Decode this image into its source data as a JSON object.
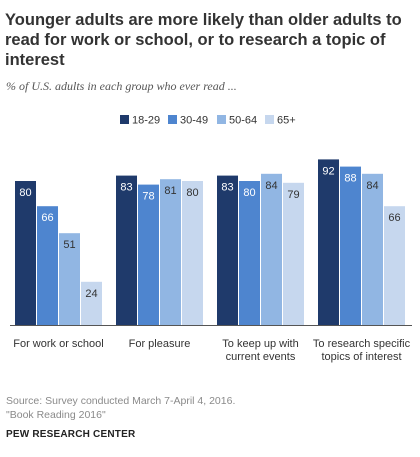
{
  "title": "Younger adults are more likely than older adults to read for work or school, or to research a topic of interest",
  "subtitle": "% of U.S. adults in each group who ever read ...",
  "source_line1": "Source: Survey conducted March 7-April 4, 2016.",
  "source_line2": "\"Book Reading 2016\"",
  "brand": "PEW RESEARCH CENTER",
  "colors": {
    "18-29": "#1f3a6b",
    "30-49": "#4e85cf",
    "50-64": "#91b6e3",
    "65+": "#c6d7ee"
  },
  "chart_data": {
    "type": "bar",
    "categories": [
      "For work or school",
      "For pleasure",
      "To keep up with current events",
      "To research specific topics of interest"
    ],
    "category_lines": [
      [
        "For work or school"
      ],
      [
        "For pleasure"
      ],
      [
        "To keep up with",
        "current events"
      ],
      [
        "To research specific",
        "topics of interest"
      ]
    ],
    "series": [
      {
        "name": "18-29",
        "values": [
          80,
          83,
          83,
          92
        ]
      },
      {
        "name": "30-49",
        "values": [
          66,
          78,
          80,
          88
        ]
      },
      {
        "name": "50-64",
        "values": [
          51,
          81,
          84,
          84
        ]
      },
      {
        "name": "65+",
        "values": [
          24,
          80,
          79,
          66
        ]
      }
    ],
    "ylim": [
      0,
      100
    ],
    "legend": "top-center",
    "grid": false
  }
}
